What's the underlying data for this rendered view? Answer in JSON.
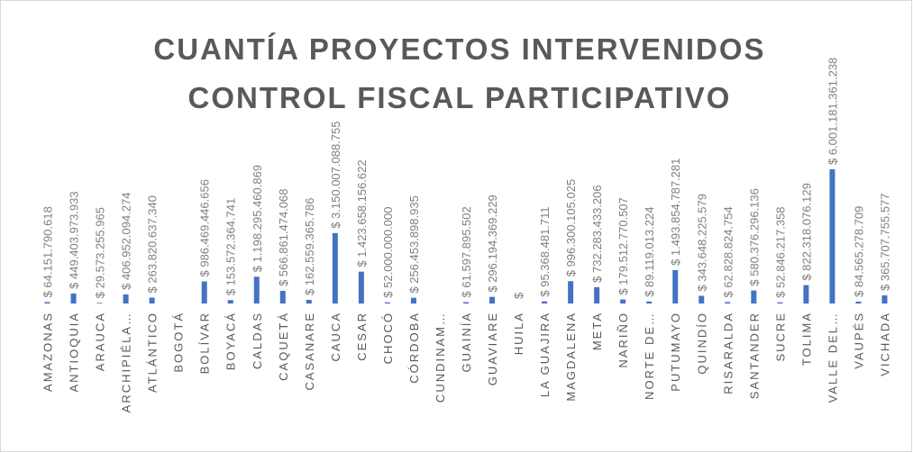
{
  "chart_data": {
    "type": "bar",
    "title": [
      "CUANTÍA PROYECTOS INTERVENIDOS",
      "CONTROL FISCAL PARTICIPATIVO"
    ],
    "categories": [
      "AMAZONAS",
      "ANTIOQUIA",
      "ARAUCA",
      "ARCHIPIÉLA…",
      "ATLÁNTICO",
      "BOGOTÁ",
      "BOLÍVAR",
      "BOYACÁ",
      "CALDAS",
      "CAQUETÁ",
      "CASANARE",
      "CAUCA",
      "CESAR",
      "CHOCÓ",
      "CÓRDOBA",
      "CUNDINAM…",
      "GUAINÍA",
      "GUAVIARE",
      "HUILA",
      "LA GUAJIRA",
      "MAGDALENA",
      "META",
      "NARIÑO",
      "NORTE DE…",
      "PUTUMAYO",
      "QUINDÍO",
      "RISARALDA",
      "SANTANDER",
      "SUCRE",
      "TOLIMA",
      "VALLE DEL…",
      "VAUPÉS",
      "VICHADA"
    ],
    "values": [
      64151790618,
      449403973933,
      29573255965,
      406952094274,
      263820637340,
      null,
      986469446656,
      153572364741,
      1198295460869,
      566861474068,
      162559365786,
      3150007088755,
      1423658156622,
      52000000000,
      256453898935,
      null,
      61597895502,
      296194369229,
      0,
      95368481711,
      996300105025,
      732283433206,
      179512770507,
      89119013224,
      1493854787281,
      343648225579,
      62828824754,
      580376296136,
      52846217358,
      822318076129,
      6001181361238,
      84565278709,
      365707755577
    ],
    "value_labels": [
      "$ 64.151.790.618",
      "$ 449.403.973.933",
      "$ 29.573.255.965",
      "$ 406.952.094.274",
      "$ 263.820.637.340",
      null,
      "$ 986.469.446.656",
      "$ 153.572.364.741",
      "$ 1.198.295.460.869",
      "$ 566.861.474.068",
      "$ 162.559.365.786",
      "$ 3.150.007.088.755",
      "$ 1.423.658.156.622",
      "$ 52.000.000.000",
      "$ 256.453.898.935",
      null,
      "$ 61.597.895.502",
      "$ 296.194.369.229",
      "$",
      "$ 95.368.481.711",
      "$ 996.300.105.025",
      "$ 732.283.433.206",
      "$ 179.512.770.507",
      "$ 89.119.013.224",
      "$ 1.493.854.787.281",
      "$ 343.648.225.579",
      "$ 62.828.824.754",
      "$ 580.376.296.136",
      "$ 52.846.217.358",
      "$ 822.318.076.129",
      "$ 6.001.181.361.238",
      "$ 84.565.278.709",
      "$ 365.707.755.577"
    ],
    "color": "#4472c4"
  }
}
